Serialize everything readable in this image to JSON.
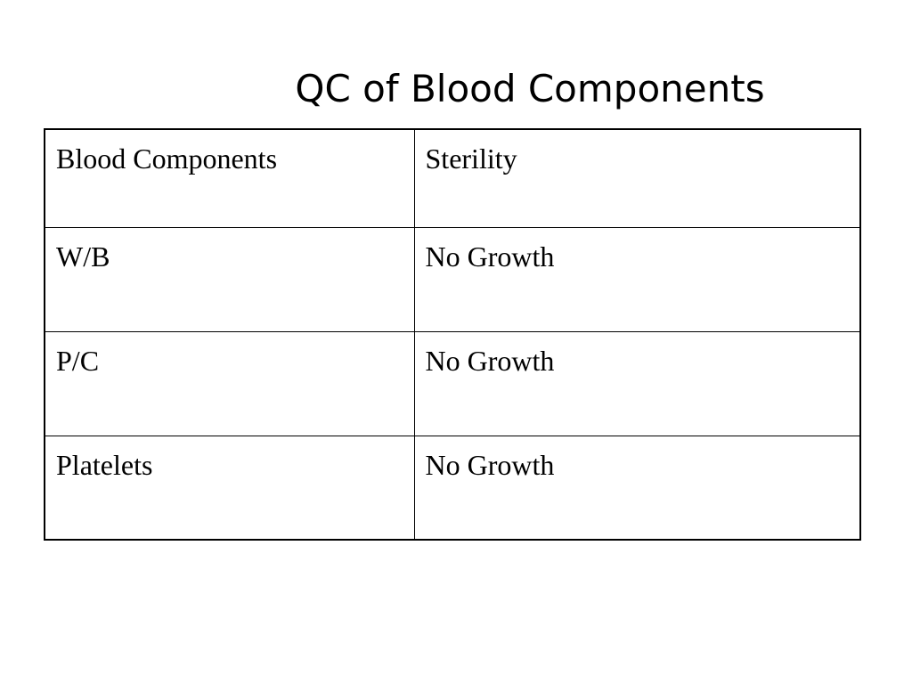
{
  "slide": {
    "title": "QC of Blood Components"
  },
  "table": {
    "headers": [
      "Blood Components",
      "Sterility"
    ],
    "rows": [
      [
        "W/B",
        "No Growth"
      ],
      [
        "P/C",
        "No Growth"
      ],
      [
        "Platelets",
        "No Growth"
      ]
    ]
  }
}
